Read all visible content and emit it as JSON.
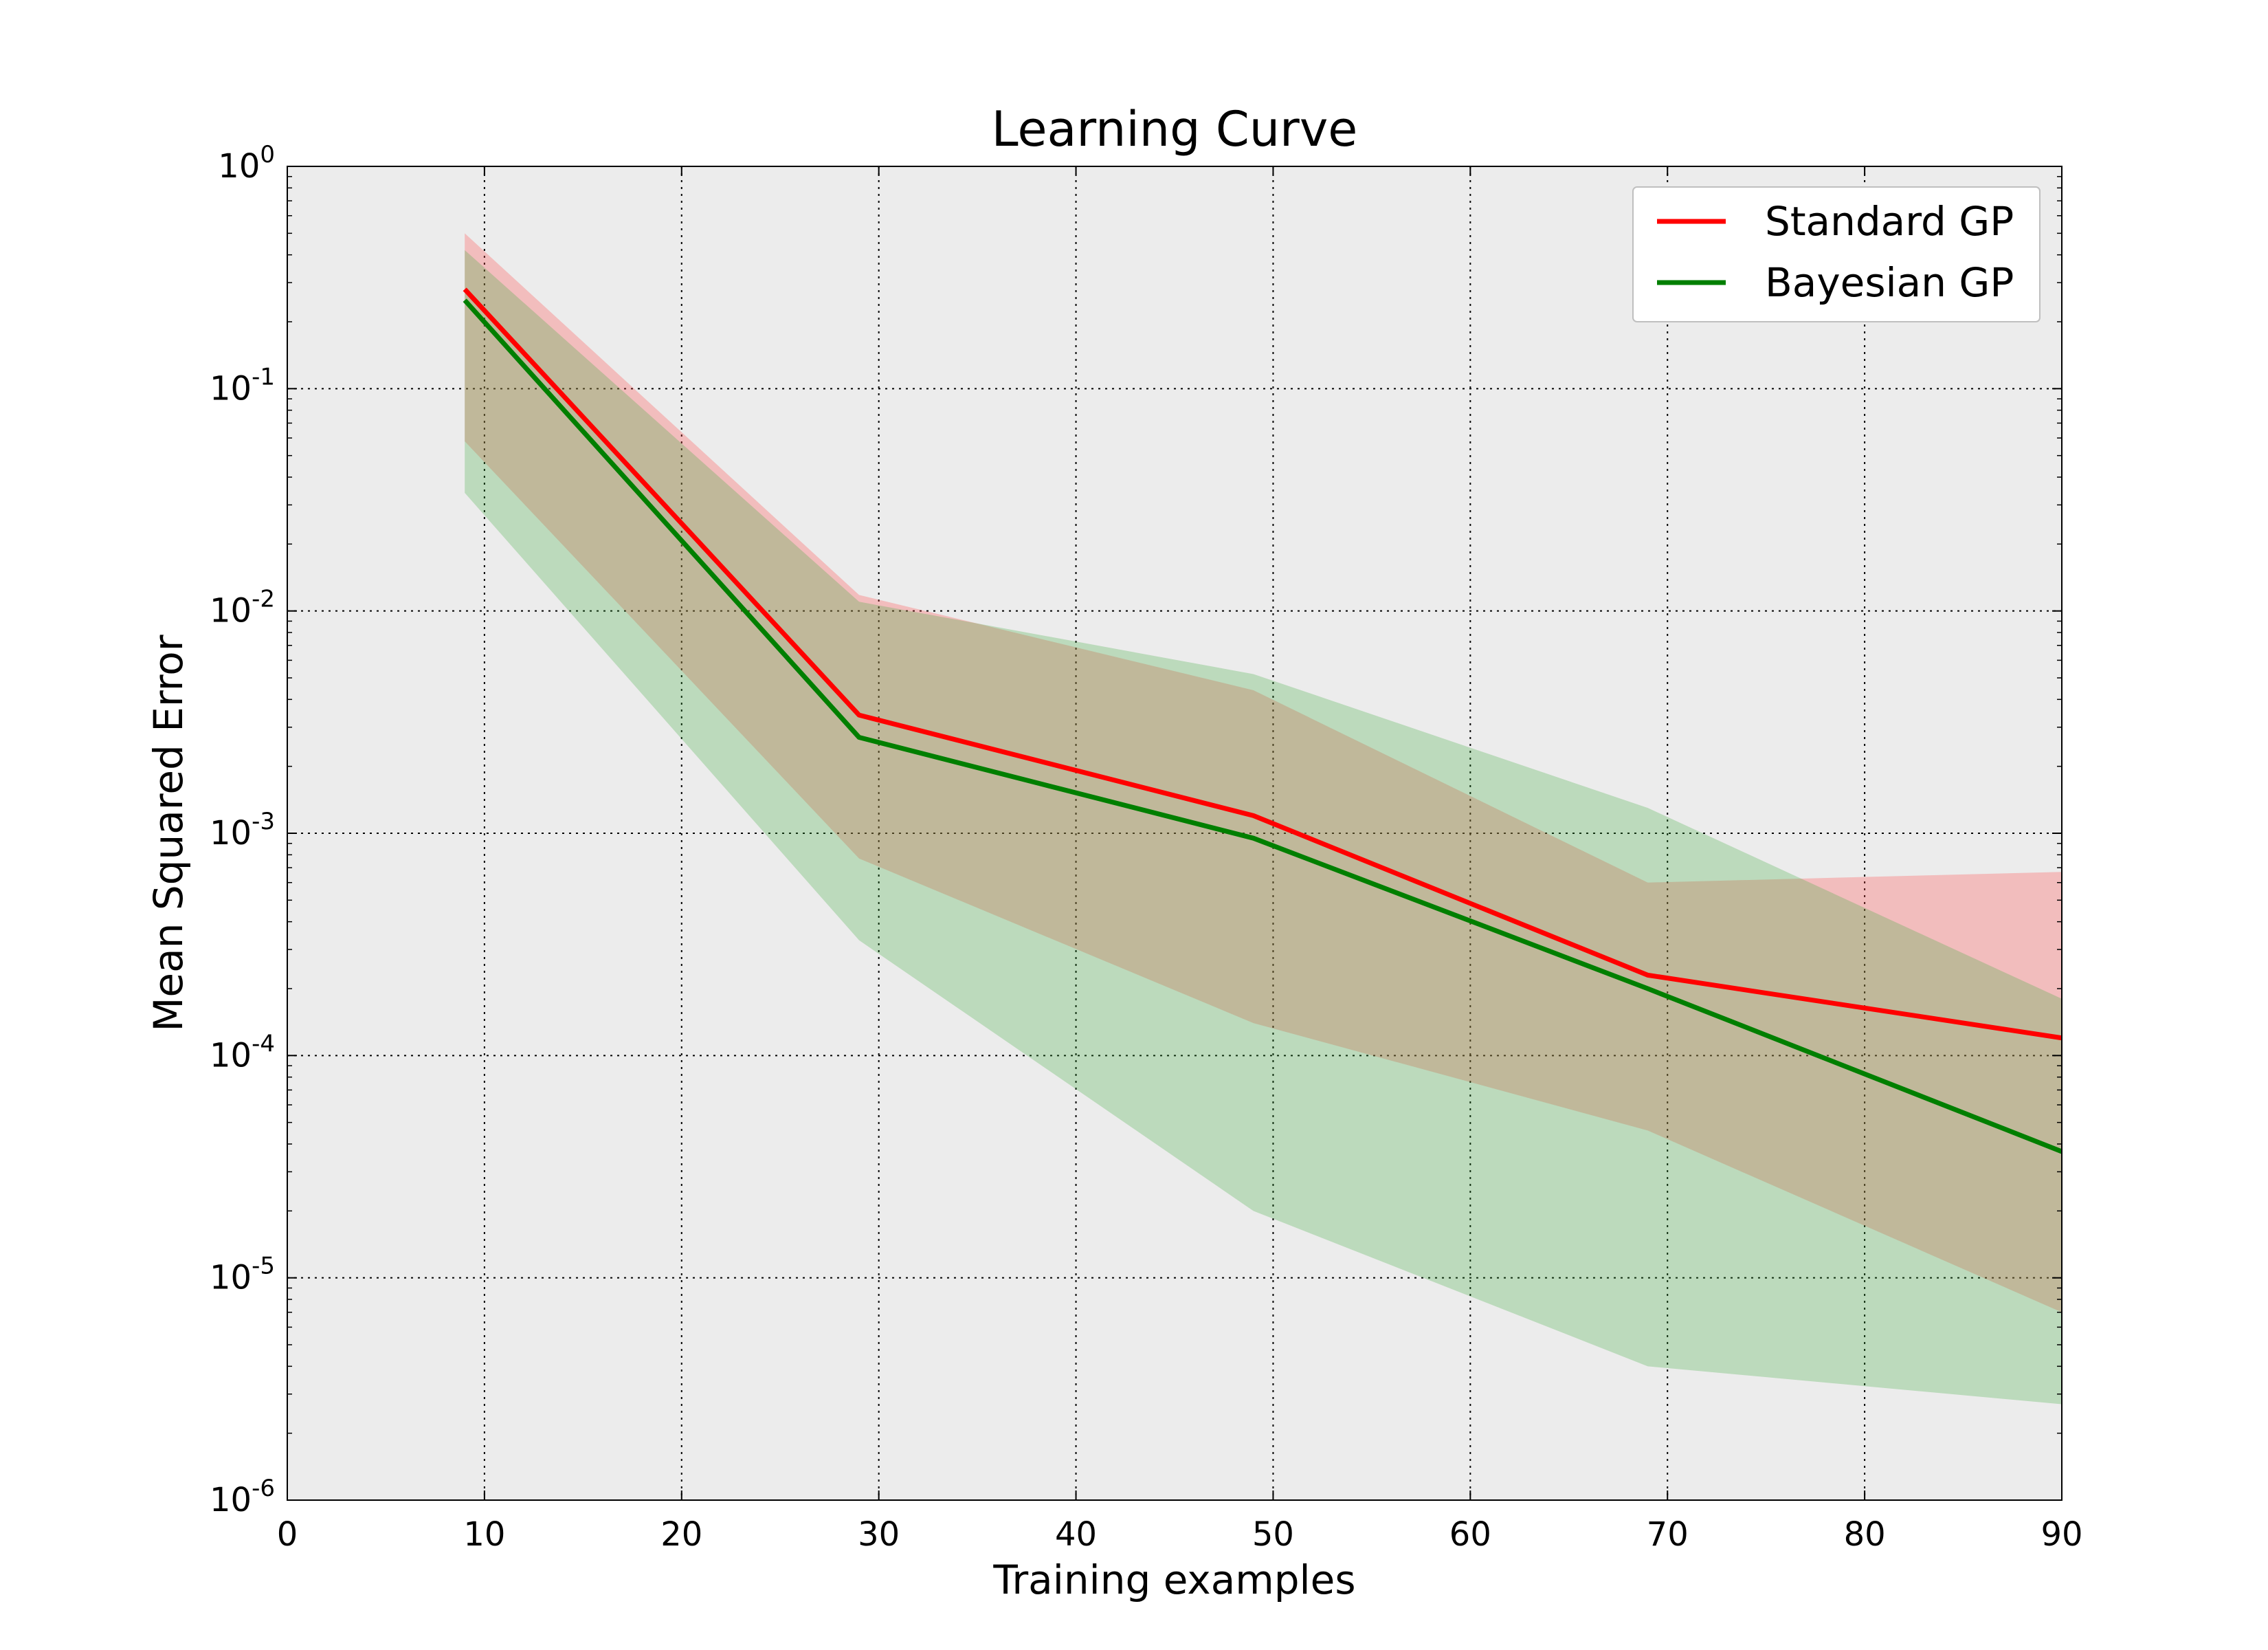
{
  "chart_data": {
    "type": "line",
    "title": "Learning Curve",
    "xlabel": "Training examples",
    "ylabel": "Mean Squared Error",
    "xlim": [
      0,
      90
    ],
    "ylim": [
      1e-06,
      1
    ],
    "yscale": "log",
    "grid": true,
    "legend_position": "top-right",
    "x_ticks": [
      0,
      10,
      20,
      30,
      40,
      50,
      60,
      70,
      80,
      90
    ],
    "y_ticks": [
      {
        "value": 1,
        "base": "10",
        "exp": "0"
      },
      {
        "value": 0.1,
        "base": "10",
        "exp": "-1"
      },
      {
        "value": 0.01,
        "base": "10",
        "exp": "-2"
      },
      {
        "value": 0.001,
        "base": "10",
        "exp": "-3"
      },
      {
        "value": 0.0001,
        "base": "10",
        "exp": "-4"
      },
      {
        "value": 1e-05,
        "base": "10",
        "exp": "-5"
      },
      {
        "value": 1e-06,
        "base": "10",
        "exp": "-6"
      }
    ],
    "x": [
      9,
      29,
      49,
      69,
      90
    ],
    "series": [
      {
        "name": "Standard GP",
        "color": "#ff0000",
        "values": [
          0.28,
          0.0034,
          0.0012,
          0.00023,
          0.00012
        ],
        "band_lower": [
          0.058,
          0.00077,
          0.00014,
          4.6e-05,
          7e-06
        ],
        "band_upper": [
          0.5,
          0.0118,
          0.0044,
          0.0006,
          0.00067
        ]
      },
      {
        "name": "Bayesian GP",
        "color": "#007f00",
        "values": [
          0.25,
          0.0027,
          0.00095,
          0.0002,
          3.7e-05
        ],
        "band_lower": [
          0.034,
          0.00033,
          2e-05,
          4e-06,
          2.7e-06
        ],
        "band_upper": [
          0.42,
          0.011,
          0.0052,
          0.0013,
          0.00018
        ]
      }
    ]
  }
}
